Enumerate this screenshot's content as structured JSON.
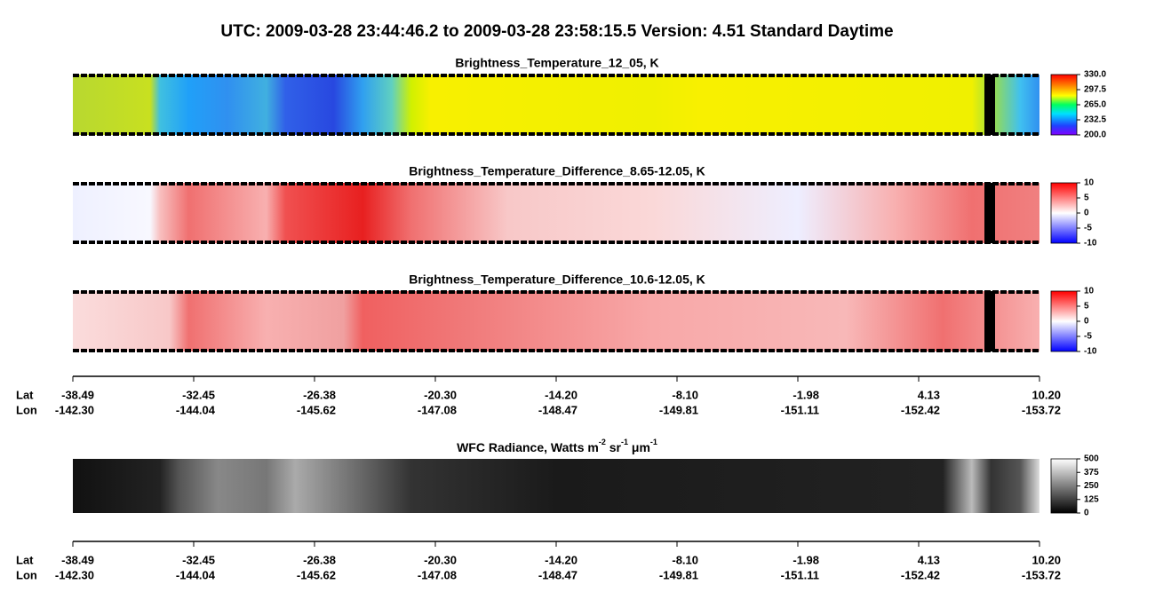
{
  "title": "UTC:  2009-03-28   23:44:46.2  to  2009-03-28   23:58:15.5    Version: 4.51  Standard Daytime",
  "panels": [
    {
      "title": "Brightness_Temperature_12_05, K",
      "colormap": "rainbow",
      "colorbar_ticks": [
        {
          "value": 330,
          "label": "330.0"
        },
        {
          "value": 297.5,
          "label": "297.5"
        },
        {
          "value": 265,
          "label": "265.0"
        },
        {
          "value": 232.5,
          "label": "232.5"
        },
        {
          "value": 200,
          "label": "200.0"
        }
      ]
    },
    {
      "title": "Brightness_Temperature_Difference_8.65-12.05, K",
      "colormap": "diverging",
      "colorbar_ticks": [
        10,
        5,
        0,
        -5,
        -10
      ]
    },
    {
      "title": "Brightness_Temperature_Difference_10.6-12.05, K",
      "colormap": "diverging",
      "colorbar_ticks": [
        10,
        5,
        0,
        -5,
        -10
      ]
    },
    {
      "title_parts": [
        {
          "text": "WFC Radiance, Watts m"
        },
        {
          "sup": "-2"
        },
        {
          "text": " sr"
        },
        {
          "sup": "-1"
        },
        {
          "text": " μm"
        },
        {
          "sup": "-1"
        }
      ],
      "colormap": "gray",
      "colorbar_ticks": [
        500,
        375,
        250,
        125,
        0
      ]
    }
  ],
  "axis": {
    "lat_label": "Lat",
    "lon_label": "Lon",
    "lat": [
      "-38.49",
      "-32.45",
      "-26.38",
      "-20.30",
      "-14.20",
      "-8.10",
      "-1.98",
      "4.13",
      "10.20"
    ],
    "lon": [
      "-142.30",
      "-144.04",
      "-145.62",
      "-147.08",
      "-148.47",
      "-149.81",
      "-151.11",
      "-152.42",
      "-153.72"
    ]
  }
}
